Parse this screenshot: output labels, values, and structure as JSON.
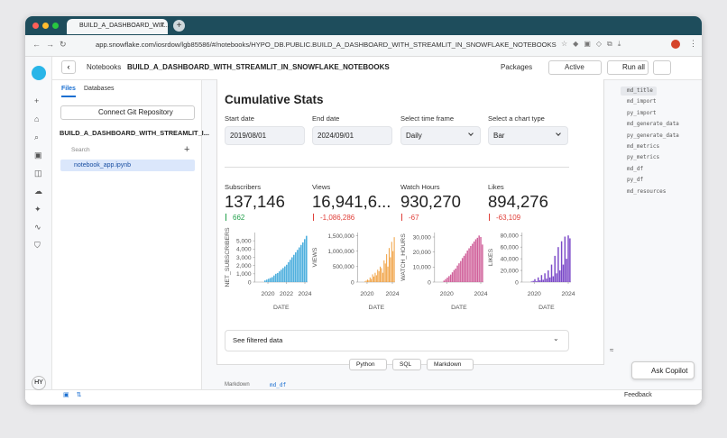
{
  "browser": {
    "tab_title": "BUILD_A_DASHBOARD_WIT...",
    "url": "app.snowflake.com/iosrdow/lgb85586/#/notebooks/HYPO_DB.PUBLIC.BUILD_A_DASHBOARD_WITH_STREAMLIT_IN_SNOWFLAKE_NOTEBOOKS"
  },
  "toolbar": {
    "breadcrumb": "Notebooks",
    "notebook": "BUILD_A_DASHBOARD_WITH_STREAMLIT_IN_SNOWFLAKE_NOTEBOOKS",
    "packages": "Packages",
    "status": "Active",
    "run": "Run all"
  },
  "sidebar": {
    "user": "HY"
  },
  "files": {
    "tabs": [
      "Files",
      "Databases"
    ],
    "git": "Connect Git Repository",
    "folder": "BUILD_A_DASHBOARD_WITH_STREAMLIT_I...",
    "search": "Search",
    "file": "notebook_app.ipynb"
  },
  "app": {
    "title": "Cumulative Stats",
    "controls": [
      {
        "label": "Start date",
        "value": "2019/08/01"
      },
      {
        "label": "End date",
        "value": "2024/09/01"
      },
      {
        "label": "Select time frame",
        "value": "Daily"
      },
      {
        "label": "Select a chart type",
        "value": "Bar"
      }
    ],
    "metrics": [
      {
        "label": "Subscribers",
        "value": "137,146",
        "delta": "662",
        "direction": "up"
      },
      {
        "label": "Views",
        "value": "16,941,6...",
        "delta": "-1,086,286",
        "direction": "down"
      },
      {
        "label": "Watch Hours",
        "value": "930,270",
        "delta": "-67",
        "direction": "down"
      },
      {
        "label": "Likes",
        "value": "894,276",
        "delta": "-63,109",
        "direction": "down"
      }
    ],
    "charts": [
      {
        "y_label": "NET_SUBSCRIBERS",
        "x_label": "DATE",
        "color": "#4fb0de",
        "ylim": [
          0,
          6000
        ],
        "yticks": [
          0,
          {
            "value": 1000,
            "label": "1,000"
          },
          {
            "value": 2000,
            "label": "2,000"
          },
          {
            "value": 3000,
            "label": "3,000"
          },
          {
            "value": 4000,
            "label": "4,000"
          },
          {
            "value": 5000,
            "label": "5,000"
          }
        ],
        "xticks": [
          2020,
          2022,
          2024
        ],
        "values": [
          200,
          300,
          400,
          500,
          600,
          800,
          1000,
          1100,
          1300,
          1500,
          1700,
          1900,
          2100,
          2400,
          2700,
          3000,
          3300,
          3600,
          3900,
          4200,
          4500,
          4800,
          5200,
          5600
        ]
      },
      {
        "y_label": "VIEWS",
        "x_label": "DATE",
        "color": "#f0a040",
        "ylim": [
          0,
          1600000
        ],
        "yticks": [
          0,
          {
            "value": 500000,
            "label": "500,000"
          },
          {
            "value": 1000000,
            "label": "1,000,000"
          },
          {
            "value": 1500000,
            "label": "1,500,000"
          }
        ],
        "xticks": [
          2020,
          2024
        ],
        "values": [
          20000,
          50000,
          80000,
          60000,
          150000,
          100000,
          250000,
          180000,
          300000,
          220000,
          400000,
          350000,
          500000,
          450000,
          300000,
          700000,
          600000,
          900000,
          500000,
          1100000,
          800000,
          1300000,
          1000000,
          1450000
        ]
      },
      {
        "y_label": "WATCH_HOURS",
        "x_label": "DATE",
        "color": "#d0609a",
        "ylim": [
          0,
          33000
        ],
        "yticks": [
          0,
          {
            "value": 10000,
            "label": "10,000"
          },
          {
            "value": 20000,
            "label": "20,000"
          },
          {
            "value": 30000,
            "label": "30,000"
          }
        ],
        "xticks": [
          2020,
          2024
        ],
        "values": [
          1000,
          2000,
          3000,
          4000,
          5000,
          6500,
          8000,
          9000,
          11000,
          12500,
          14000,
          16000,
          17500,
          19000,
          21000,
          22500,
          24000,
          25500,
          27000,
          28500,
          29500,
          31000,
          30000,
          25000
        ]
      },
      {
        "y_label": "LIKES",
        "x_label": "DATE",
        "color": "#7a48c8",
        "ylim": [
          0,
          85000
        ],
        "yticks": [
          0,
          {
            "value": 20000,
            "label": "20,000"
          },
          {
            "value": 40000,
            "label": "40,000"
          },
          {
            "value": 60000,
            "label": "60,000"
          },
          {
            "value": 80000,
            "label": "80,000"
          }
        ],
        "xticks": [
          2020,
          2024
        ],
        "values": [
          1000,
          2000,
          5000,
          1500,
          8000,
          3000,
          12000,
          4000,
          15000,
          6000,
          20000,
          8000,
          30000,
          10000,
          45000,
          15000,
          60000,
          20000,
          70000,
          30000,
          78000,
          40000,
          80000,
          75000
        ]
      }
    ],
    "expander": "See filtered data"
  },
  "cell_buttons": [
    "Python",
    "SQL",
    "Markdown"
  ],
  "next_cell": {
    "type": "Markdown",
    "name": "md_df"
  },
  "outline": [
    "md_title",
    "md_import",
    "py_import",
    "md_generate_data",
    "py_generate_data",
    "md_metrics",
    "py_metrics",
    "md_df",
    "py_df",
    "md_resources"
  ],
  "copilot": "Ask Copilot",
  "footer": {
    "feedback": "Feedback"
  }
}
